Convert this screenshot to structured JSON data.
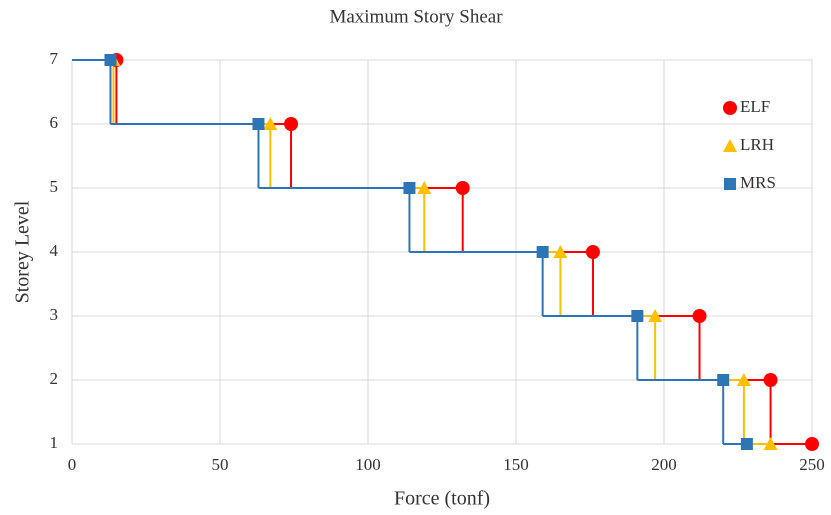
{
  "chart_data": {
    "type": "step",
    "title": "Maximum Story Shear",
    "x_label": "Force (tonf)",
    "y_label": "Storey Level",
    "y": [
      7,
      6,
      5,
      4,
      3,
      2,
      1
    ],
    "series": [
      {
        "name": "ELF",
        "color": "#ff0000",
        "marker": "circle",
        "values": [
          15,
          74,
          132,
          176,
          212,
          236,
          250
        ]
      },
      {
        "name": "LRH",
        "color": "#ffc000",
        "marker": "triangle",
        "values": [
          14,
          67,
          119,
          165,
          197,
          227,
          236
        ]
      },
      {
        "name": "MRS",
        "color": "#2e75b6",
        "marker": "square",
        "values": [
          13,
          63,
          114,
          159,
          191,
          220,
          228
        ]
      }
    ],
    "xlim": [
      0,
      250
    ],
    "xticks": [
      0,
      50,
      100,
      150,
      200,
      250
    ],
    "ylim": [
      1,
      7
    ],
    "yticks": [
      1,
      2,
      3,
      4,
      5,
      6,
      7
    ],
    "grid": true,
    "legend": "right"
  }
}
